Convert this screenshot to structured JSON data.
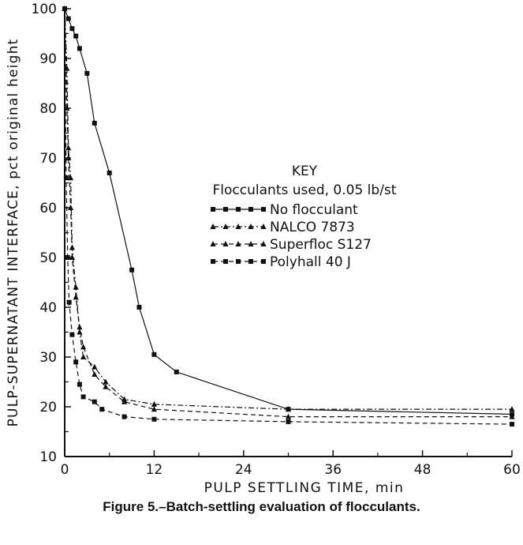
{
  "caption": "Figure 5.–Batch-settling evaluation of flocculants.",
  "chart_data": {
    "type": "line",
    "title": "",
    "xlabel": "PULP SETTLING TIME, min",
    "ylabel": "PULP-SUPERNATANT INTERFACE, pct original height",
    "xlim": [
      0,
      60
    ],
    "ylim": [
      10,
      100
    ],
    "x_ticks": [
      "0",
      "12",
      "24",
      "36",
      "48",
      "60"
    ],
    "y_ticks": [
      "10",
      "20",
      "30",
      "40",
      "50",
      "60",
      "70",
      "80",
      "90",
      "100"
    ],
    "grid": false,
    "legend": {
      "title": "KEY",
      "subtitle": "Flocculants used, 0.05 lb/st",
      "placement": "center-right"
    },
    "series": [
      {
        "name": "No flocculant",
        "marker": "square",
        "line": "solid",
        "x": [
          0,
          0.5,
          1,
          1.5,
          2,
          3,
          4,
          6,
          9,
          10,
          12,
          15,
          30,
          60
        ],
        "y": [
          100,
          98,
          96,
          94.5,
          92,
          87,
          77,
          67,
          47.5,
          40,
          30.5,
          27,
          19.5,
          18.5
        ]
      },
      {
        "name": "NALCO 7873",
        "marker": "triangle",
        "line": "dash-dot",
        "x": [
          0,
          0.3,
          0.5,
          0.8,
          1,
          1.5,
          2,
          2.5,
          4,
          5.5,
          8,
          12,
          30,
          60
        ],
        "y": [
          100,
          88,
          72,
          66,
          52,
          44,
          35,
          30,
          28,
          25,
          21.5,
          20.5,
          19.5,
          19.5
        ]
      },
      {
        "name": "Superfloc S127",
        "marker": "triangle",
        "line": "dashed",
        "x": [
          0,
          0.3,
          0.5,
          0.8,
          1,
          1.5,
          2,
          2.5,
          4,
          5.5,
          8,
          12,
          30,
          60
        ],
        "y": [
          100,
          80,
          70,
          60,
          50,
          42,
          36,
          32,
          26.5,
          24,
          21,
          19.5,
          18,
          18
        ]
      },
      {
        "name": "Polyhall 40 J",
        "marker": "square",
        "line": "dashed",
        "x": [
          0,
          0.2,
          0.4,
          0.6,
          1,
          1.5,
          2,
          2.5,
          4,
          5,
          8,
          12,
          30,
          60
        ],
        "y": [
          100,
          66,
          50,
          41,
          34.5,
          29,
          24.5,
          22,
          21,
          19.5,
          18,
          17.5,
          17,
          16.5
        ]
      }
    ]
  }
}
